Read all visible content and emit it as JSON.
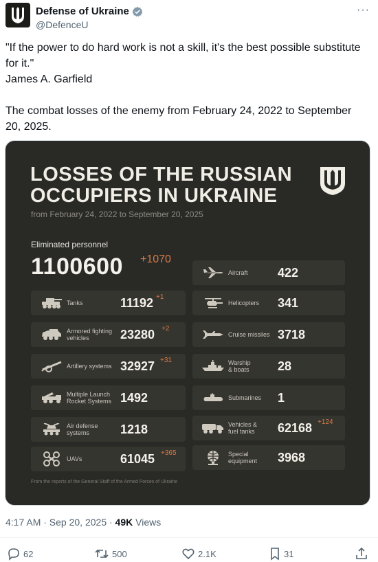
{
  "account": {
    "display_name": "Defense of Ukraine",
    "handle": "@DefenceU",
    "verified_icon": "verified-badge-icon",
    "more_label": "···"
  },
  "tweet": {
    "quote_line1": "\"If the power to do hard work is not a skill, it's the best possible substitute for it.\"",
    "author_line": "James A. Garfield",
    "body": "The combat losses of the enemy from February 24, 2022 to September 20, 2025."
  },
  "card": {
    "title": "LOSSES OF THE RUSSIAN OCCUPIERS IN UKRAINE",
    "subtitle": "from February 24, 2022 to September 20, 2025",
    "personnel_label": "Eliminated personnel",
    "personnel_value": "1100600",
    "personnel_delta": "+1070",
    "footnote": "From the reports of the General Staff of the Armed Forces of Ukraine",
    "left": [
      {
        "label": "Tanks",
        "value": "11192",
        "delta": "+1"
      },
      {
        "label": "Armored fighting vehicles",
        "value": "23280",
        "delta": "+2"
      },
      {
        "label": "Artillery systems",
        "value": "32927",
        "delta": "+31"
      },
      {
        "label": "Multiple Launch Rocket Systems",
        "value": "1492",
        "delta": ""
      },
      {
        "label": "Air defense systems",
        "value": "1218",
        "delta": ""
      },
      {
        "label": "UAVs",
        "value": "61045",
        "delta": "+365"
      }
    ],
    "right": [
      {
        "label": "Aircraft",
        "value": "422",
        "delta": ""
      },
      {
        "label": "Helicopters",
        "value": "341",
        "delta": ""
      },
      {
        "label": "Cruise missiles",
        "value": "3718",
        "delta": ""
      },
      {
        "label": "Warship & boats",
        "value": "28",
        "delta": ""
      },
      {
        "label": "Submarines",
        "value": "1",
        "delta": ""
      },
      {
        "label": "Vehicles & fuel tanks",
        "value": "62168",
        "delta": "+124"
      },
      {
        "label": "Special equipment",
        "value": "3968",
        "delta": ""
      }
    ]
  },
  "meta": {
    "time": "4:17 AM · Sep 20, 2025 · ",
    "views_count": "49K",
    "views_label": " Views"
  },
  "actions": {
    "replies": "62",
    "reposts": "500",
    "likes": "2.1K",
    "bookmarks": "31"
  },
  "colors": {
    "card_bg": "#292a26",
    "tile_bg": "#35352f",
    "accent_delta": "#d77a48",
    "verified": "#829aab"
  }
}
